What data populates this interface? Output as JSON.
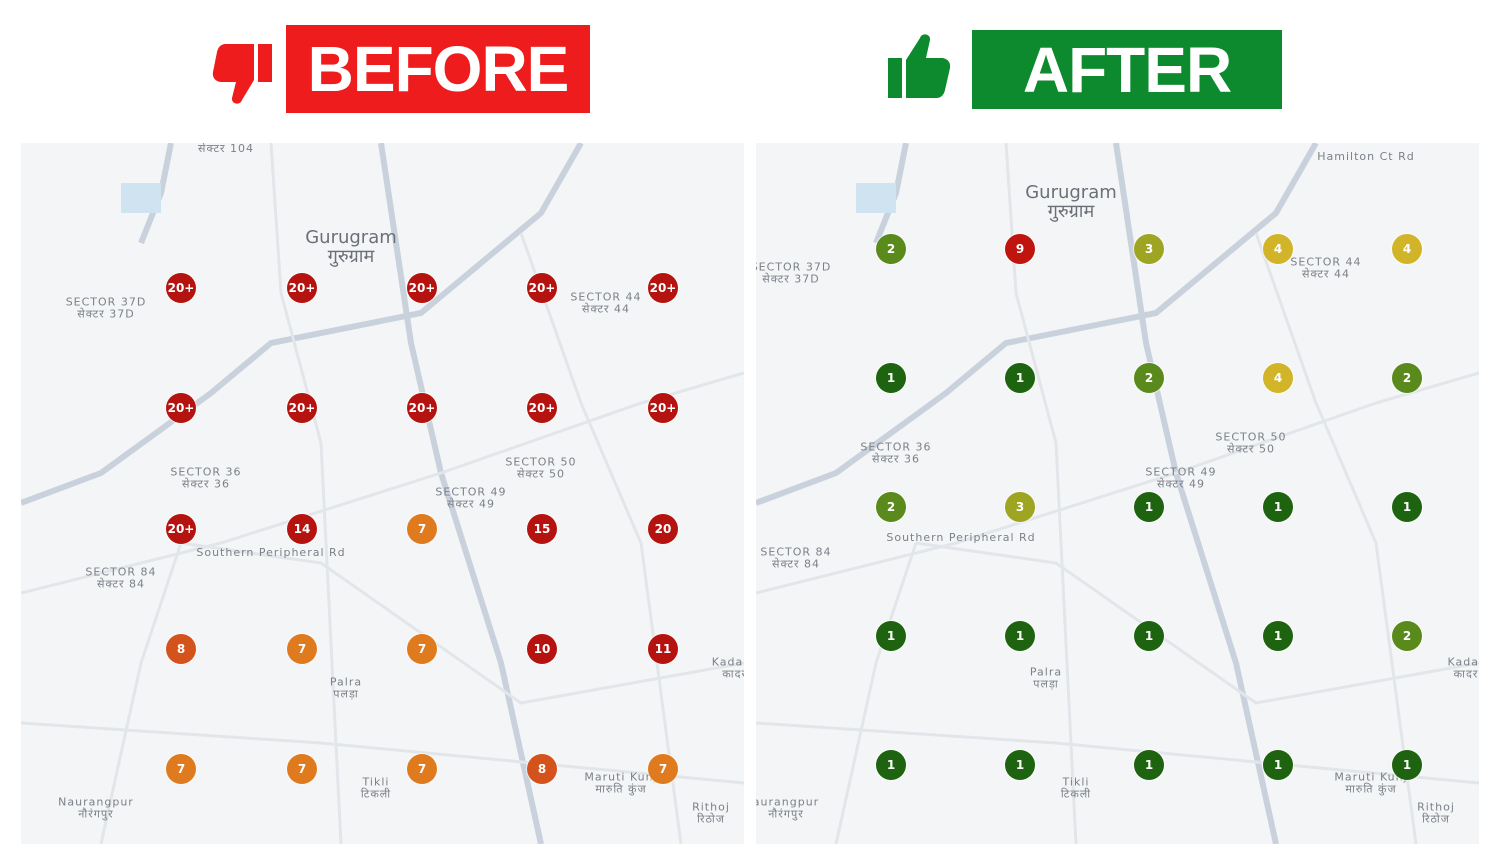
{
  "before": {
    "label": "BEFORE",
    "banner_color": "#ee1c1c",
    "icon": "thumbs-down-icon",
    "markers": [
      [
        "20+",
        "20+",
        "20+",
        "20+",
        "20+"
      ],
      [
        "20+",
        "20+",
        "20+",
        "20+",
        "20+"
      ],
      [
        "20+",
        "14",
        "7",
        "15",
        "20"
      ],
      [
        "8",
        "7",
        "7",
        "10",
        "11"
      ],
      [
        "7",
        "7",
        "7",
        "8",
        "7"
      ]
    ],
    "map_labels": [
      {
        "t": "Gurugram\nगुरुग्राम",
        "big": true
      },
      {
        "t": "SECTOR 37D\nसेक्टर 37D",
        "big": false
      },
      {
        "t": "SECTOR 44\nसेक्टर 44",
        "big": false
      },
      {
        "t": "SECTOR 36\nसेक्टर 36",
        "big": false
      },
      {
        "t": "SECTOR 50\nसेक्टर 50",
        "big": false
      },
      {
        "t": "SECTOR 49\nसेक्टर 49",
        "big": false
      },
      {
        "t": "SECTOR 84\nसेक्टर 84",
        "big": false
      },
      {
        "t": "Palra\nपलड़ा",
        "big": false
      },
      {
        "t": "Tikli\nटिकली",
        "big": false
      },
      {
        "t": "Maruti Kunj\nमारुति कुंज",
        "big": false
      },
      {
        "t": "Naurangpur\nनौरंगपुर",
        "big": false
      },
      {
        "t": "Kadarpur\nकादरपुर",
        "big": false
      },
      {
        "t": "Rithoj\nरिठोज",
        "big": false
      },
      {
        "t": "सेक्टर 104",
        "big": false
      },
      {
        "t": "Southern Peripheral Rd",
        "big": false
      }
    ]
  },
  "after": {
    "label": "AFTER",
    "banner_color": "#0e8a2e",
    "icon": "thumbs-up-icon",
    "markers": [
      [
        "2",
        "9",
        "3",
        "4",
        "4"
      ],
      [
        "1",
        "1",
        "2",
        "4",
        "2"
      ],
      [
        "2",
        "3",
        "1",
        "1",
        "1"
      ],
      [
        "1",
        "1",
        "1",
        "1",
        "2"
      ],
      [
        "1",
        "1",
        "1",
        "1",
        "1"
      ]
    ],
    "map_labels": [
      {
        "t": "Gurugram\nगुरुग्राम",
        "big": true
      },
      {
        "t": "SECTOR 37D\nसेक्टर 37D",
        "big": false
      },
      {
        "t": "SECTOR 44\nसेक्टर 44",
        "big": false
      },
      {
        "t": "SECTOR 36\nसेक्टर 36",
        "big": false
      },
      {
        "t": "SECTOR 50\nसेक्टर 50",
        "big": false
      },
      {
        "t": "SECTOR 49\nसेक्टर 49",
        "big": false
      },
      {
        "t": "SECTOR 84\nसेक्टर 84",
        "big": false
      },
      {
        "t": "Palra\nपलड़ा",
        "big": false
      },
      {
        "t": "Tikli\nटिकली",
        "big": false
      },
      {
        "t": "Maruti Kunj\nमारुति कुंज",
        "big": false
      },
      {
        "t": "aurangpur\nनौरंगपुर",
        "big": false
      },
      {
        "t": "Kadar\nकादर",
        "big": false
      },
      {
        "t": "Rithoj\nरिठोज",
        "big": false
      },
      {
        "t": "Hamilton Ct Rd",
        "big": false
      },
      {
        "t": "Southern Peripheral Rd",
        "big": false
      }
    ]
  },
  "marker_colors": {
    "20+": "#b5130f",
    "20": "#b5130f",
    "15": "#b5130f",
    "14": "#b5130f",
    "11": "#b5130f",
    "10": "#b5130f",
    "9": "#c0150f",
    "8": "#d4521c",
    "7": "#e07a1e",
    "4": "#d2b428",
    "3": "#9ea523",
    "2": "#5b8a1c",
    "1": "#1e6410"
  }
}
